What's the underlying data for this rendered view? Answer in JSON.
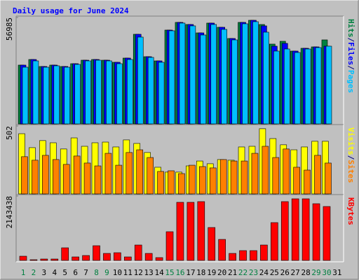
{
  "chart_data": [
    {
      "type": "bar",
      "title": "Daily usage for June 2024",
      "categories": [
        "1",
        "2",
        "3",
        "4",
        "5",
        "6",
        "7",
        "8",
        "9",
        "10",
        "11",
        "12",
        "13",
        "14",
        "15",
        "16",
        "17",
        "18",
        "19",
        "20",
        "21",
        "22",
        "23",
        "24",
        "25",
        "26",
        "27",
        "28",
        "29",
        "30",
        "31"
      ],
      "category_colors": [
        "#008040",
        "#008040",
        "#000000",
        "#000000",
        "#000000",
        "#000000",
        "#000000",
        "#008040",
        "#008040",
        "#000000",
        "#000000",
        "#000000",
        "#000000",
        "#000000",
        "#008040",
        "#008040",
        "#000000",
        "#000000",
        "#000000",
        "#000000",
        "#000000",
        "#008040",
        "#008040",
        "#000000",
        "#000000",
        "#000000",
        "#000000",
        "#000000",
        "#008040",
        "#008040",
        "#000000"
      ],
      "legend_separator": "/",
      "ylim": [
        0,
        56985
      ],
      "yticks": [
        56985
      ],
      "series": [
        {
          "name": "Hits",
          "color": "#008040",
          "values": [
            31500,
            34500,
            30750,
            31500,
            30750,
            32250,
            34125,
            34500,
            34125,
            33000,
            35250,
            48000,
            36000,
            33750,
            50250,
            54375,
            53250,
            48750,
            54000,
            51750,
            45750,
            54375,
            55500,
            53250,
            42750,
            44250,
            39000,
            40500,
            41250,
            45000,
            null
          ]
        },
        {
          "name": "Files",
          "color": "#0000ff",
          "values": [
            31500,
            34500,
            30750,
            31500,
            30750,
            32250,
            34125,
            34500,
            34125,
            33000,
            35250,
            48000,
            36000,
            33750,
            50250,
            54375,
            53250,
            48750,
            54000,
            51750,
            45750,
            54375,
            55500,
            52500,
            41625,
            43125,
            39000,
            40500,
            41250,
            41625,
            null
          ]
        },
        {
          "name": "Pages",
          "color": "#00bfff",
          "values": [
            30375,
            33750,
            30375,
            31125,
            30375,
            31875,
            33750,
            34125,
            33750,
            32250,
            34500,
            46500,
            35625,
            33000,
            49875,
            54000,
            52500,
            47625,
            53250,
            50625,
            45000,
            53625,
            54750,
            49125,
            39000,
            40125,
            38250,
            40125,
            40875,
            41625,
            null
          ]
        }
      ]
    },
    {
      "type": "bar",
      "legend_separator": "/",
      "ylim": [
        0,
        502
      ],
      "yticks": [
        502
      ],
      "series": [
        {
          "name": "Visits",
          "color": "#ffff00",
          "values": [
            445,
            342,
            394,
            378,
            332,
            414,
            352,
            378,
            383,
            347,
            399,
            373,
            306,
            197,
            161,
            161,
            207,
            243,
            223,
            254,
            249,
            347,
            352,
            482,
            409,
            363,
            326,
            347,
            389,
            389,
            null
          ]
        },
        {
          "name": "Sites",
          "color": "#ff8000",
          "values": [
            275,
            249,
            285,
            254,
            218,
            280,
            228,
            207,
            300,
            212,
            306,
            326,
            269,
            166,
            171,
            150,
            212,
            202,
            192,
            254,
            243,
            243,
            300,
            352,
            269,
            332,
            197,
            176,
            285,
            228,
            null
          ]
        }
      ]
    },
    {
      "type": "bar",
      "ylim": [
        0,
        2143438
      ],
      "yticks": [
        2143438
      ],
      "series": [
        {
          "name": "KBytes",
          "color": "#ff0000",
          "values": [
            139788,
            23298,
            46596,
            46596,
            419364,
            116490,
            163086,
            489258,
            232980,
            256278,
            116490,
            512556,
            232980,
            93192,
            955218,
            1933734,
            1933734,
            1957032,
            1095006,
            698940,
            232980,
            326172,
            326172,
            512556,
            1258092,
            1957032,
            2050224,
            2050224,
            1887138,
            1793946,
            null
          ]
        }
      ]
    }
  ]
}
